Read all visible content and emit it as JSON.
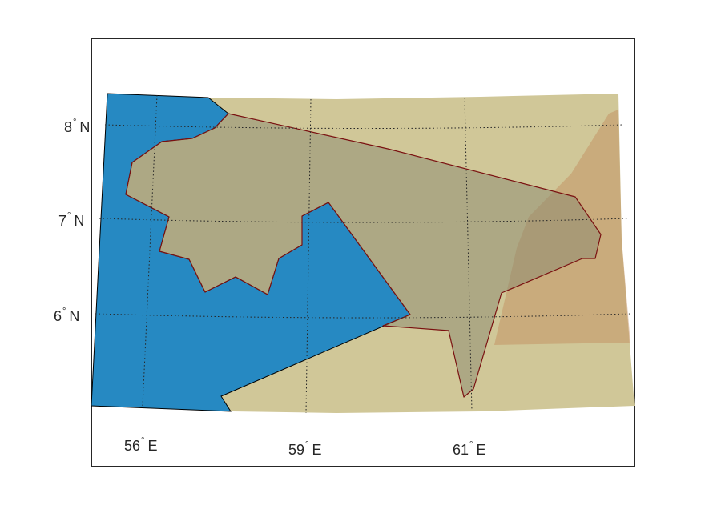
{
  "map": {
    "colors": {
      "background": "#ffffff",
      "axes_box": "#262626",
      "land": "#d0c798",
      "water": "#2689c2",
      "region": "#9a9a7a",
      "region_edge": "#7a1010",
      "overlay": "#c28a5a",
      "grid": "#262626",
      "text": "#262626"
    },
    "graticule": {
      "lat_labels": [
        {
          "value": "8",
          "deg": "°",
          "hemi": "N"
        },
        {
          "value": "7",
          "deg": "°",
          "hemi": "N"
        },
        {
          "value": "6",
          "deg": "°",
          "hemi": "N"
        }
      ],
      "lon_labels": [
        {
          "value": "56",
          "deg": "°",
          "hemi": "E"
        },
        {
          "value": "59",
          "deg": "°",
          "hemi": "E"
        },
        {
          "value": "61",
          "deg": "°",
          "hemi": "E"
        }
      ],
      "grid": "on",
      "grid_style": "dotted"
    }
  }
}
